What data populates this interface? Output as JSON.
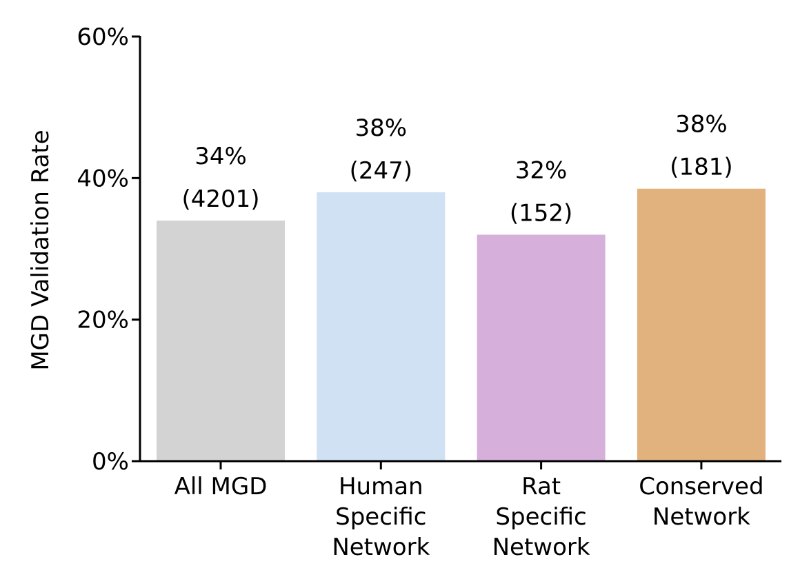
{
  "chart_data": {
    "type": "bar",
    "categories": [
      [
        "All MGD"
      ],
      [
        "Human",
        "Specific",
        "Network"
      ],
      [
        "Rat",
        "Specific",
        "Network"
      ],
      [
        "Conserved",
        "Network"
      ]
    ],
    "values": [
      34,
      38,
      32,
      38.5
    ],
    "value_labels": [
      "34%",
      "38%",
      "32%",
      "38%"
    ],
    "count_labels": [
      "(4201)",
      "(247)",
      "(152)",
      "(181)"
    ],
    "colors": [
      "#d3d3d3",
      "#d0e1f3",
      "#d6afdb",
      "#e1b27d"
    ],
    "ylabel": "MGD Validation Rate",
    "ylim": [
      0,
      60
    ],
    "yticks": [
      0,
      20,
      40,
      60
    ],
    "ytick_labels": [
      "0%",
      "20%",
      "40%",
      "60%"
    ],
    "grid": false
  }
}
